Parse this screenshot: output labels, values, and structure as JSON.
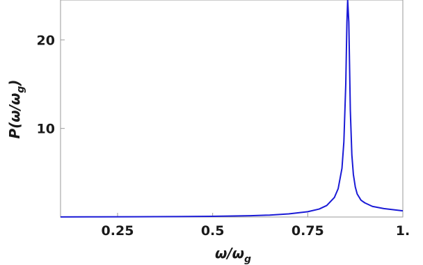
{
  "chart_data": {
    "type": "line",
    "xlabel": "ω/ω",
    "xlabel_sub": "g",
    "ylabel": "P(ω/ω",
    "ylabel_sub": "g",
    "ylabel_close": ")",
    "xlim": [
      0.1,
      1.0
    ],
    "ylim": [
      0,
      24.5
    ],
    "x_ticks": [
      {
        "value": 0.25,
        "label": "0.25"
      },
      {
        "value": 0.5,
        "label": "0.5"
      },
      {
        "value": 0.75,
        "label": "0.75"
      },
      {
        "value": 1.0,
        "label": "1."
      }
    ],
    "y_ticks": [
      {
        "value": 10,
        "label": "10"
      },
      {
        "value": 20,
        "label": "20"
      }
    ],
    "grid": false,
    "series": [
      {
        "color": "#1a1ad6",
        "peak": {
          "x": 0.855,
          "y": 24.5
        },
        "x": [
          0.1,
          0.2,
          0.3,
          0.4,
          0.5,
          0.6,
          0.65,
          0.7,
          0.75,
          0.78,
          0.8,
          0.82,
          0.83,
          0.84,
          0.845,
          0.85,
          0.853,
          0.855,
          0.858,
          0.862,
          0.866,
          0.87,
          0.875,
          0.88,
          0.89,
          0.9,
          0.92,
          0.95,
          1.0
        ],
        "y": [
          0.01,
          0.02,
          0.03,
          0.05,
          0.08,
          0.15,
          0.22,
          0.35,
          0.6,
          0.9,
          1.3,
          2.2,
          3.2,
          5.5,
          8.5,
          15.0,
          22.0,
          24.5,
          22.0,
          12.0,
          7.0,
          4.8,
          3.4,
          2.6,
          1.9,
          1.6,
          1.2,
          0.95,
          0.7
        ]
      }
    ]
  }
}
